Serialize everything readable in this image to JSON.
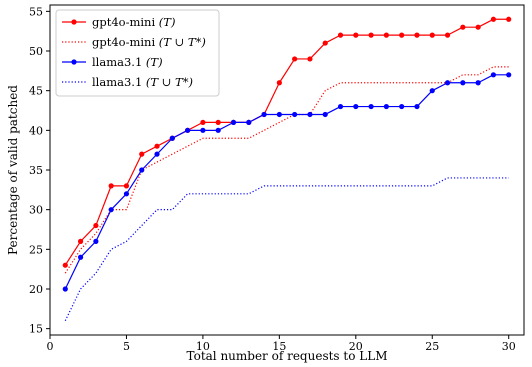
{
  "chart_data": {
    "type": "line",
    "title": "",
    "xlabel": "Total number of requests to LLM",
    "ylabel": "Percentage of valid patched",
    "xlim": [
      0,
      31
    ],
    "ylim": [
      14.2,
      55.8
    ],
    "xticks": [
      0,
      5,
      10,
      15,
      20,
      25,
      30
    ],
    "yticks": [
      15,
      20,
      25,
      30,
      35,
      40,
      45,
      50,
      55
    ],
    "grid": false,
    "legend_position": "top-left",
    "x": [
      1,
      2,
      3,
      4,
      5,
      6,
      7,
      8,
      9,
      10,
      11,
      12,
      13,
      14,
      15,
      16,
      17,
      18,
      19,
      20,
      21,
      22,
      23,
      24,
      25,
      26,
      27,
      28,
      29,
      30
    ],
    "series": [
      {
        "name": "gpt4o-mini (T)",
        "color": "#ff0000",
        "line_style": "solid",
        "marker": "circle",
        "values": [
          23,
          26,
          28,
          33,
          33,
          37,
          38,
          39,
          40,
          41,
          41,
          41,
          41,
          42,
          46,
          49,
          49,
          51,
          52,
          52,
          52,
          52,
          52,
          52,
          52,
          52,
          53,
          53,
          54,
          54
        ]
      },
      {
        "name": "gpt4o-mini (T ∪ T*)",
        "color": "#ff0000",
        "line_style": "dotted",
        "marker": "none",
        "values": [
          22,
          25,
          27,
          30,
          30,
          35,
          36,
          37,
          38,
          39,
          39,
          39,
          39,
          40,
          41,
          42,
          42,
          45,
          46,
          46,
          46,
          46,
          46,
          46,
          46,
          46,
          47,
          47,
          48,
          48
        ]
      },
      {
        "name": "llama3.1 (T)",
        "color": "#0000ff",
        "line_style": "solid",
        "marker": "circle",
        "values": [
          20,
          24,
          26,
          30,
          32,
          35,
          37,
          39,
          40,
          40,
          40,
          41,
          41,
          42,
          42,
          42,
          42,
          42,
          43,
          43,
          43,
          43,
          43,
          43,
          45,
          46,
          46,
          46,
          47,
          47
        ]
      },
      {
        "name": "llama3.1 (T ∪ T*)",
        "color": "#0000ff",
        "line_style": "dotted",
        "marker": "none",
        "values": [
          16,
          20,
          22,
          25,
          26,
          28,
          30,
          30,
          32,
          32,
          32,
          32,
          32,
          33,
          33,
          33,
          33,
          33,
          33,
          33,
          33,
          33,
          33,
          33,
          33,
          34,
          34,
          34,
          34,
          34
        ]
      }
    ]
  },
  "legend": [
    {
      "text": "gpt4o-mini",
      "math": "(T)"
    },
    {
      "text": "gpt4o-mini",
      "math": "(T ∪ T*)"
    },
    {
      "text": "llama3.1",
      "math": "(T)"
    },
    {
      "text": "llama3.1",
      "math": "(T ∪ T*)"
    }
  ]
}
